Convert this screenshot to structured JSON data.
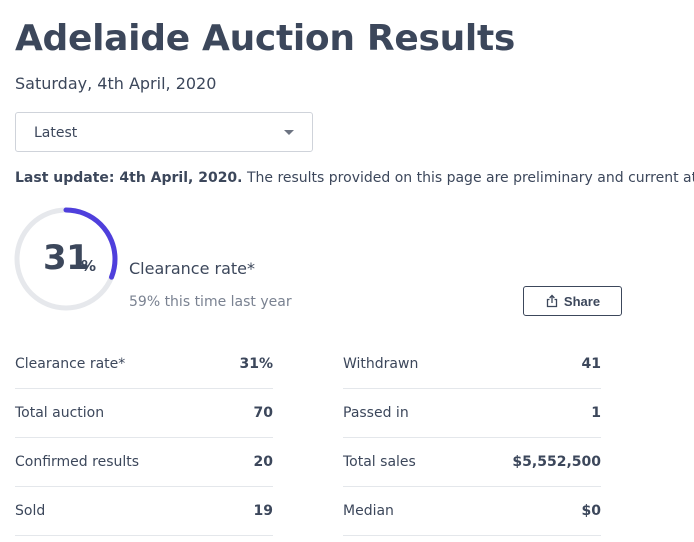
{
  "header": {
    "title": "Adelaide Auction Results",
    "date": "Saturday, 4th April, 2020"
  },
  "filter": {
    "selected": "Latest"
  },
  "update": {
    "bold": "Last update: 4th April, 2020.",
    "text": " The results provided on this page are preliminary and current at the time"
  },
  "clearance": {
    "percent_value": 31,
    "number": "31",
    "unit": "%",
    "label": "Clearance rate*",
    "last_year": "59% this time last year",
    "ring_color": "#4f3fdc",
    "track_color": "#e6e8ec"
  },
  "share": {
    "label": "Share",
    "icon": "share-icon"
  },
  "stats_left": [
    {
      "label": "Clearance rate*",
      "value": "31%"
    },
    {
      "label": "Total auction",
      "value": "70"
    },
    {
      "label": "Confirmed results",
      "value": "20"
    },
    {
      "label": "Sold",
      "value": "19"
    }
  ],
  "stats_right": [
    {
      "label": "Withdrawn",
      "value": "41"
    },
    {
      "label": "Passed in",
      "value": "1"
    },
    {
      "label": "Total sales",
      "value": "$5,552,500"
    },
    {
      "label": "Median",
      "value": "$0"
    }
  ]
}
